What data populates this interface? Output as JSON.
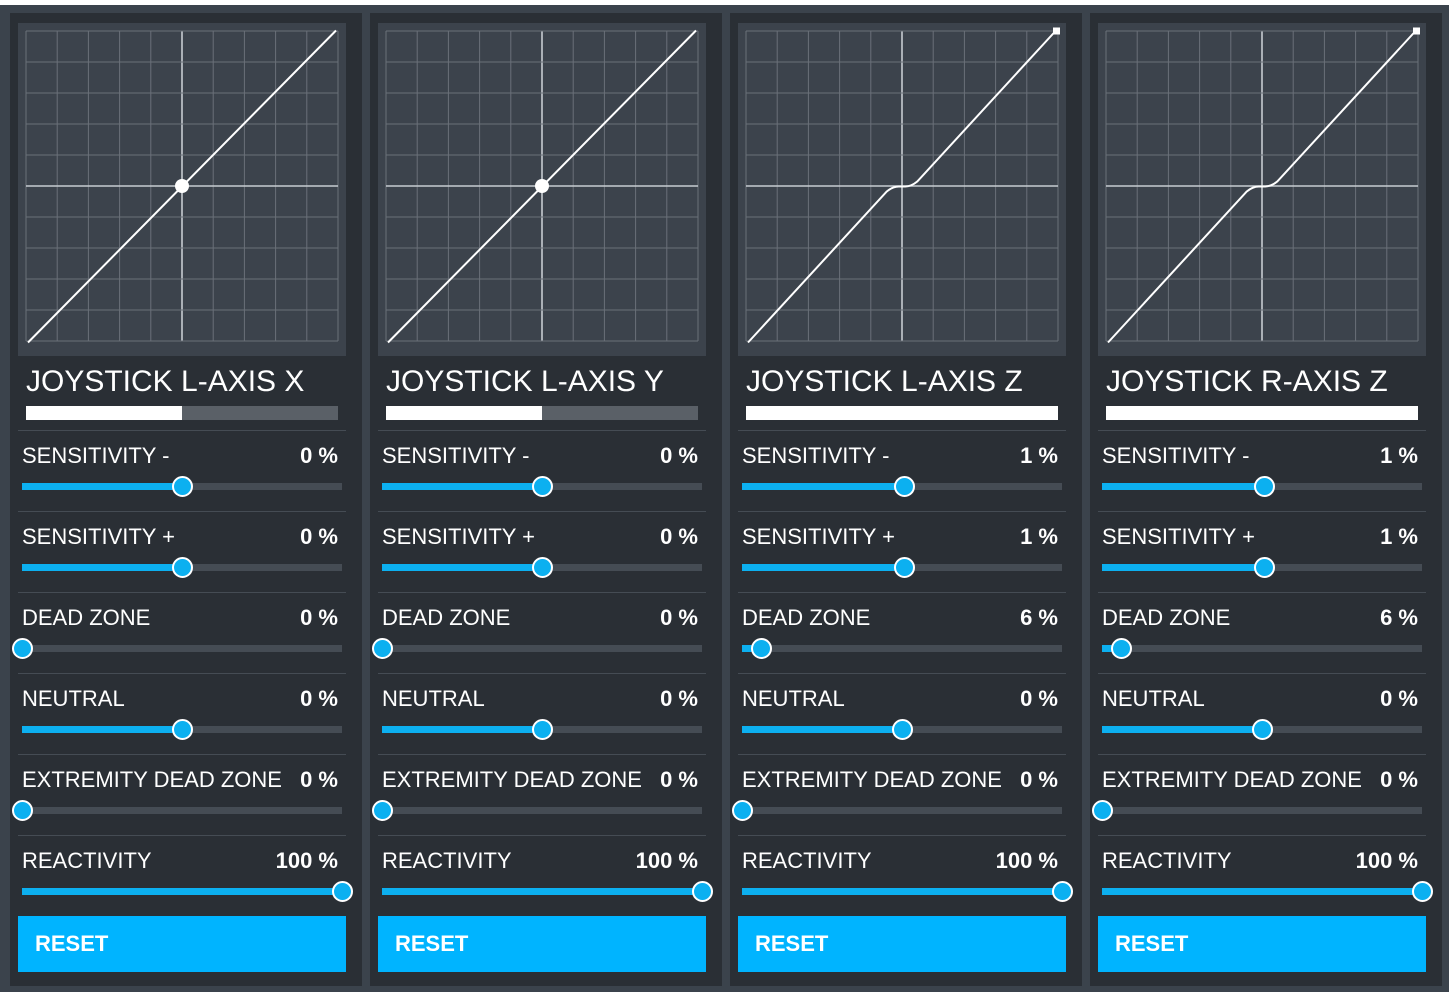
{
  "accent_color": "#0cb0f0",
  "reset_color": "#00b4ff",
  "panels": [
    {
      "title": "JOYSTICK L-AXIS X",
      "output_level": 0.5,
      "curve": {
        "dead_zone": 0,
        "endpoint_marker": false,
        "center_dot": true
      },
      "sliders": [
        {
          "label": "SENSITIVITY -",
          "value": "0 %",
          "position": 0.5
        },
        {
          "label": "SENSITIVITY +",
          "value": "0 %",
          "position": 0.5
        },
        {
          "label": "DEAD ZONE",
          "value": "0 %",
          "position": 0.0
        },
        {
          "label": "NEUTRAL",
          "value": "0 %",
          "position": 0.5
        },
        {
          "label": "EXTREMITY DEAD ZONE",
          "value": "0 %",
          "position": 0.0
        },
        {
          "label": "REACTIVITY",
          "value": "100 %",
          "position": 1.0
        }
      ],
      "reset_label": "RESET"
    },
    {
      "title": "JOYSTICK L-AXIS Y",
      "output_level": 0.5,
      "curve": {
        "dead_zone": 0,
        "endpoint_marker": false,
        "center_dot": true
      },
      "sliders": [
        {
          "label": "SENSITIVITY -",
          "value": "0 %",
          "position": 0.5
        },
        {
          "label": "SENSITIVITY +",
          "value": "0 %",
          "position": 0.5
        },
        {
          "label": "DEAD ZONE",
          "value": "0 %",
          "position": 0.0
        },
        {
          "label": "NEUTRAL",
          "value": "0 %",
          "position": 0.5
        },
        {
          "label": "EXTREMITY DEAD ZONE",
          "value": "0 %",
          "position": 0.0
        },
        {
          "label": "REACTIVITY",
          "value": "100 %",
          "position": 1.0
        }
      ],
      "reset_label": "RESET"
    },
    {
      "title": "JOYSTICK L-AXIS Z",
      "output_level": 1.0,
      "curve": {
        "dead_zone": 0.06,
        "endpoint_marker": true,
        "center_dot": false
      },
      "sliders": [
        {
          "label": "SENSITIVITY -",
          "value": "1 %",
          "position": 0.505
        },
        {
          "label": "SENSITIVITY +",
          "value": "1 %",
          "position": 0.505
        },
        {
          "label": "DEAD ZONE",
          "value": "6 %",
          "position": 0.06
        },
        {
          "label": "NEUTRAL",
          "value": "0 %",
          "position": 0.5
        },
        {
          "label": "EXTREMITY DEAD ZONE",
          "value": "0 %",
          "position": 0.0
        },
        {
          "label": "REACTIVITY",
          "value": "100 %",
          "position": 1.0
        }
      ],
      "reset_label": "RESET"
    },
    {
      "title": "JOYSTICK R-AXIS Z",
      "output_level": 1.0,
      "curve": {
        "dead_zone": 0.06,
        "endpoint_marker": true,
        "center_dot": false
      },
      "sliders": [
        {
          "label": "SENSITIVITY -",
          "value": "1 %",
          "position": 0.505
        },
        {
          "label": "SENSITIVITY +",
          "value": "1 %",
          "position": 0.505
        },
        {
          "label": "DEAD ZONE",
          "value": "6 %",
          "position": 0.06
        },
        {
          "label": "NEUTRAL",
          "value": "0 %",
          "position": 0.5
        },
        {
          "label": "EXTREMITY DEAD ZONE",
          "value": "0 %",
          "position": 0.0
        },
        {
          "label": "REACTIVITY",
          "value": "100 %",
          "position": 1.0
        }
      ],
      "reset_label": "RESET"
    }
  ]
}
